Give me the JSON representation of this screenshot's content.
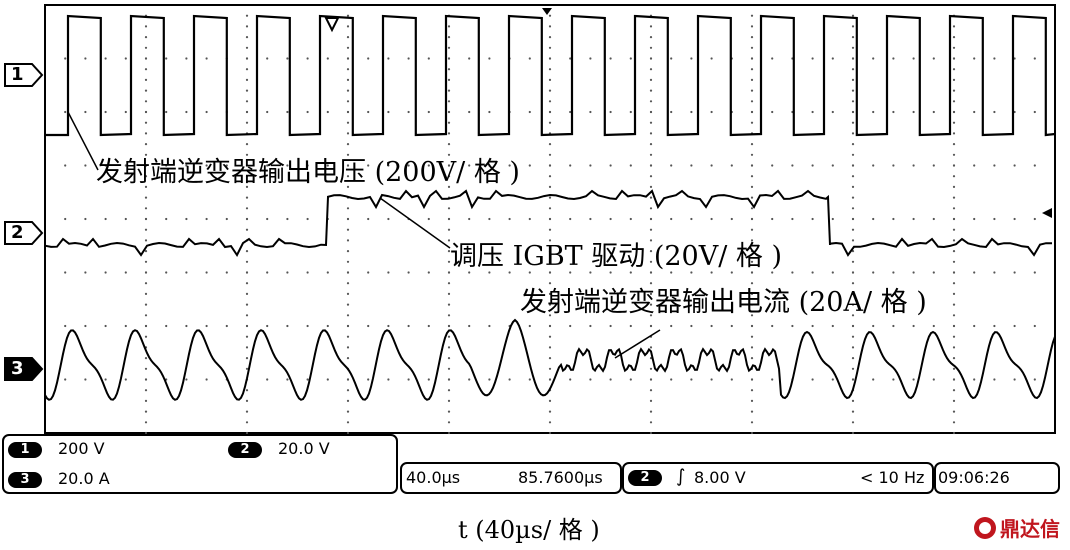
{
  "channels": {
    "ch1_marker": "1",
    "ch2_marker": "2",
    "ch3_marker": "3"
  },
  "waveform_labels": {
    "ch1": "发射端逆变器输出电压 (200V/ 格 )",
    "ch2": "调压 IGBT 驱动 (20V/ 格 )",
    "ch3": "发射端逆变器输出电流 (20A/ 格 )"
  },
  "status_bar": {
    "ch1_badge": "1",
    "ch1_scale": "200 V",
    "ch2_badge": "2",
    "ch2_scale": "20.0 V",
    "ch3_badge": "3",
    "ch3_scale": "20.0 A",
    "time_div": "40.0µs",
    "time_pos": "85.7600µs",
    "trig_badge": "2",
    "trig_slope": "∫",
    "trig_level": "8.00 V",
    "trig_freq": "< 10 Hz",
    "clock": "09:06:26"
  },
  "x_axis_label": "t (40µs/ 格 )",
  "watermark": "鼎达信",
  "colors": {
    "trace": "#000000",
    "grid_dot": "#555555",
    "brand": "#c0161e"
  }
}
